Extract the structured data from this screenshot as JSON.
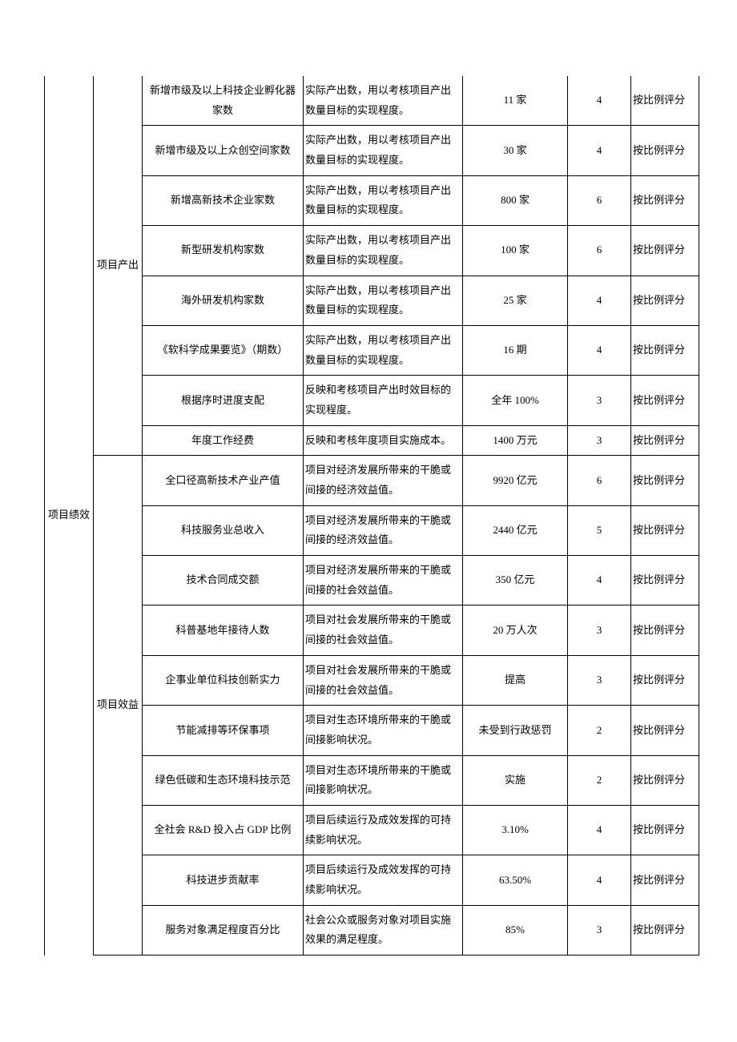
{
  "groupA": "项目绩效",
  "groupB1": "项目产出",
  "groupB2": "项目效益",
  "rows": [
    {
      "c": "新增市级及以上科技企业孵化器家数",
      "d": "实际产出数，用以考核项目产出数量目标的实现程度。",
      "e": "11 家",
      "f": "4",
      "g": "按比例评分"
    },
    {
      "c": "新增市级及以上众创空间家数",
      "d": "实际产出数，用以考核项目产出数量目标的实现程度。",
      "e": "30 家",
      "f": "4",
      "g": "按比例评分"
    },
    {
      "c": "新增高新技术企业家数",
      "d": "实际产出数，用以考核项目产出数量目标的实现程度。",
      "e": "800 家",
      "f": "6",
      "g": "按比例评分"
    },
    {
      "c": "新型研发机构家数",
      "d": "实际产出数，用以考核项目产出数量目标的实现程度。",
      "e": "100 家",
      "f": "6",
      "g": "按比例评分"
    },
    {
      "c": "海外研发机构家数",
      "d": "实际产出数，用以考核项目产出数量目标的实现程度。",
      "e": "25 家",
      "f": "4",
      "g": "按比例评分"
    },
    {
      "c": "《软科学成果要览》（期数）",
      "d": "实际产出数，用以考核项目产出数量目标的实现程度。",
      "e": "16 期",
      "f": "4",
      "g": "按比例评分"
    },
    {
      "c": "根据序时进度支配",
      "d": "反映和考核项目产出时效目标的实现程度。",
      "e": "全年 100%",
      "f": "3",
      "g": "按比例评分"
    },
    {
      "c": "年度工作经费",
      "d": "反映和考核年度项目实施成本。",
      "e": "1400 万元",
      "f": "3",
      "g": "按比例评分"
    },
    {
      "c": "全口径高新技术产业产值",
      "d": "项目对经济发展所带来的干脆或间接的经济效益值。",
      "e": "9920 亿元",
      "f": "6",
      "g": "按比例评分"
    },
    {
      "c": "科技服务业总收入",
      "d": "项目对经济发展所带来的干脆或间接的经济效益值。",
      "e": "2440 亿元",
      "f": "5",
      "g": "按比例评分"
    },
    {
      "c": "技术合同成交额",
      "d": "项目对经济发展所带来的干脆或间接的社会效益值。",
      "e": "350 亿元",
      "f": "4",
      "g": "按比例评分"
    },
    {
      "c": "科普基地年接待人数",
      "d": "项目对社会发展所带来的干脆或间接的社会效益值。",
      "e": "20 万人次",
      "f": "3",
      "g": "按比例评分"
    },
    {
      "c": "企事业单位科技创新实力",
      "d": "项目对社会发展所带来的干脆或间接的社会效益值。",
      "e": "提高",
      "f": "3",
      "g": "按比例评分"
    },
    {
      "c": "节能减排等环保事项",
      "d": "项目对生态环境所带来的干脆或间接影响状况。",
      "e": "未受到行政惩罚",
      "f": "2",
      "g": "按比例评分"
    },
    {
      "c": "绿色低碳和生态环境科技示范",
      "d": "项目对生态环境所带来的干脆或间接影响状况。",
      "e": "实施",
      "f": "2",
      "g": "按比例评分"
    },
    {
      "c": "全社会 R&D 投入占 GDP 比例",
      "d": "项目后续运行及成效发挥的可持续影响状况。",
      "e": "3.10%",
      "f": "4",
      "g": "按比例评分"
    },
    {
      "c": "科技进步贡献率",
      "d": "项目后续运行及成效发挥的可持续影响状况。",
      "e": "63.50%",
      "f": "4",
      "g": "按比例评分"
    },
    {
      "c": "服务对象满足程度百分比",
      "d": "社会公众或服务对象对项目实施效果的满足程度。",
      "e": "85%",
      "f": "3",
      "g": "按比例评分"
    }
  ]
}
